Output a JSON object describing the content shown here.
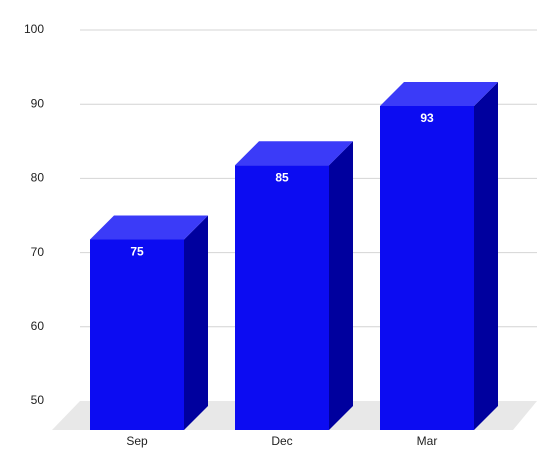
{
  "chart_data": {
    "type": "bar3d",
    "categories": [
      "Sep",
      "Dec",
      "Mar"
    ],
    "values": [
      75,
      85,
      93
    ],
    "color": "#0c0cf2",
    "ylim": [
      50,
      100
    ],
    "yticks": [
      50,
      60,
      70,
      80,
      90,
      100
    ],
    "grid": true
  }
}
